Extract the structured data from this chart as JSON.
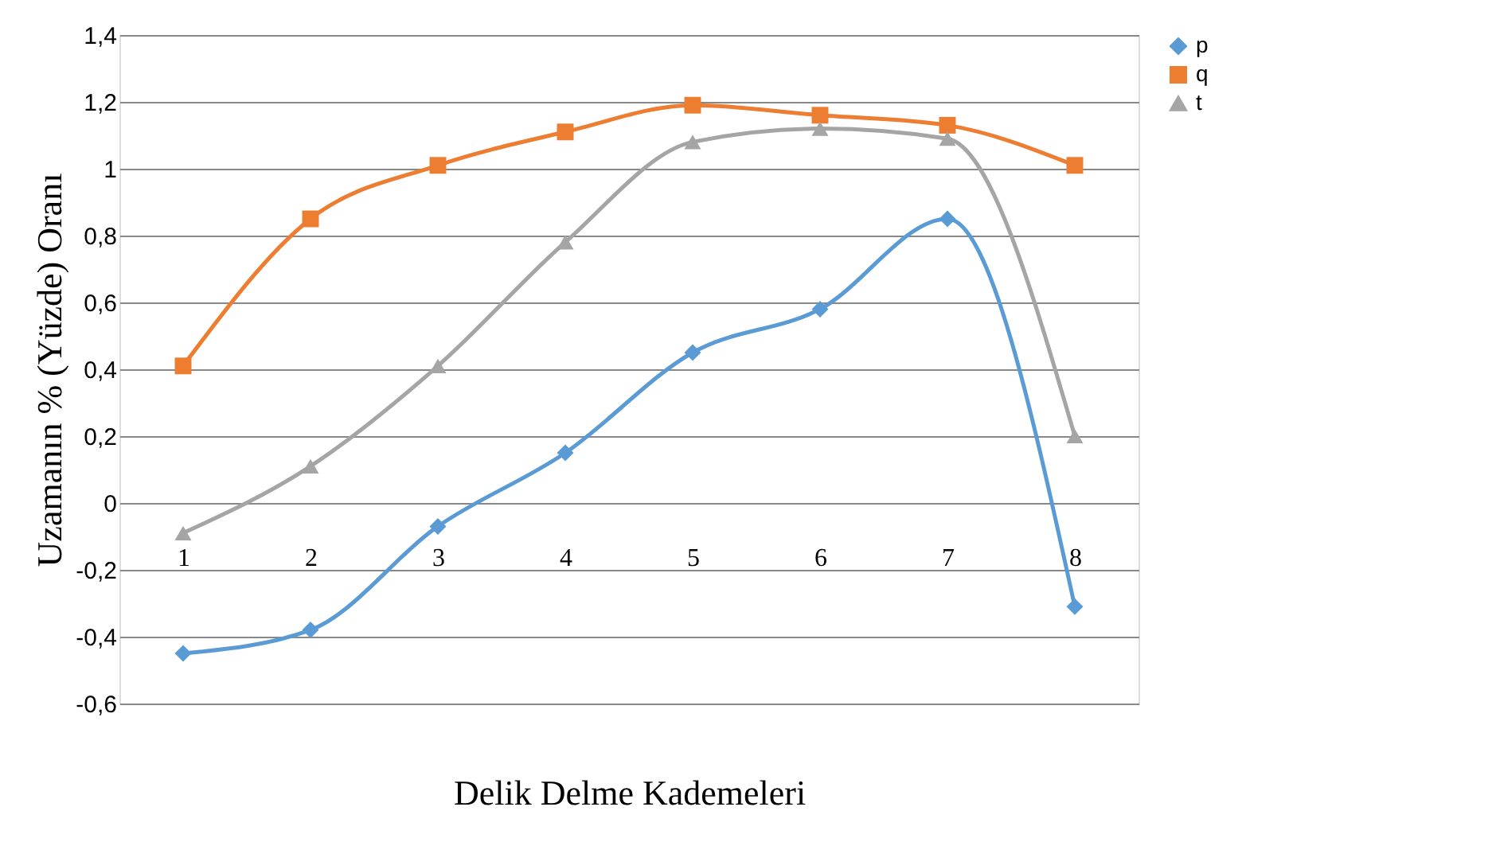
{
  "chart_data": {
    "type": "line",
    "xlabel": "Delik  Delme  Kademeleri",
    "ylabel": "Uzamanın  % (Yüzde)  Oranı",
    "categories": [
      "1",
      "2",
      "3",
      "4",
      "5",
      "6",
      "7",
      "8"
    ],
    "series": [
      {
        "name": "p",
        "color": "#5b9bd5",
        "marker": "diamond",
        "values": [
          -0.45,
          -0.38,
          -0.07,
          0.15,
          0.45,
          0.58,
          0.85,
          -0.31
        ]
      },
      {
        "name": "q",
        "color": "#ed7d31",
        "marker": "square",
        "values": [
          0.41,
          0.85,
          1.01,
          1.11,
          1.19,
          1.16,
          1.13,
          1.01
        ]
      },
      {
        "name": "t",
        "color": "#a5a5a5",
        "marker": "triangle",
        "values": [
          -0.09,
          0.11,
          0.41,
          0.78,
          1.08,
          1.12,
          1.09,
          0.2
        ]
      }
    ],
    "ylim": [
      -0.6,
      1.4
    ],
    "yticks": [
      {
        "value": -0.6,
        "label": "-0,6"
      },
      {
        "value": -0.4,
        "label": "-0,4"
      },
      {
        "value": -0.2,
        "label": "-0,2"
      },
      0,
      {
        "value": 0.2,
        "label": "0,2"
      },
      {
        "value": 0.4,
        "label": "0,4"
      },
      {
        "value": 0.6,
        "label": "0,6"
      },
      {
        "value": 0.8,
        "label": "0,8"
      },
      1,
      {
        "value": 1.2,
        "label": "1,2"
      },
      {
        "value": 1.4,
        "label": "1,4"
      }
    ],
    "grid": "y",
    "legend": "right",
    "line_style": "solid"
  }
}
